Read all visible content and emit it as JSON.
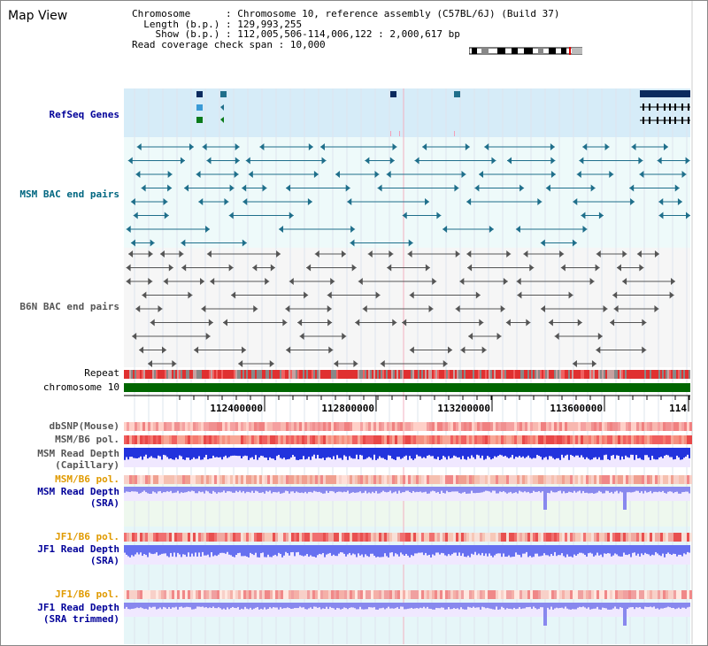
{
  "app": {
    "title": "Map View"
  },
  "info": {
    "chromosome_key": "Chromosome",
    "chromosome_value": "Chromosome 10, reference assembly (C57BL/6J) (Build 37)",
    "length_key": "Length (b.p.)",
    "length_value": "129,993,255",
    "show_key": "Show (b.p.)",
    "show_value": "112,005,506-114,006,122 : 2,000,617 bp",
    "coverage_key": "Read coverage check span",
    "coverage_value": "10,000"
  },
  "tracks": {
    "refseq": "RefSeq Genes",
    "msm_bac": "MSM BAC end pairs",
    "b6n_bac": "B6N BAC end pairs",
    "repeat": "Repeat",
    "chromosome": "chromosome 10",
    "dbsnp": "dbSNP(Mouse)",
    "msm_b6_pol_1": "MSM/B6 pol.",
    "msm_depth_cap_1": "MSM Read Depth",
    "msm_depth_cap_2": "(Capillary)",
    "msm_b6_pol_2": "MSM/B6 pol.",
    "msm_depth_sra_1": "MSM Read Depth",
    "msm_depth_sra_2": "(SRA)",
    "jf1_b6_pol_1": "JF1/B6 pol.",
    "jf1_depth_sra_1": "JF1 Read Depth",
    "jf1_depth_sra_2": "(SRA)",
    "jf1_b6_pol_2": "JF1/B6 pol.",
    "jf1_depth_trim_1": "JF1 Read Depth",
    "jf1_depth_trim_2": "(SRA trimmed)"
  },
  "ruler": {
    "ticks": [
      "112400000",
      "112800000",
      "113200000",
      "113600000",
      "114"
    ]
  },
  "colors": {
    "refseq_bg": "#d6ecf8",
    "bac_bg": "#eefafa",
    "msm_bac": "#1f6f8b",
    "b6n_bac": "#555555",
    "chromosome": "#006600",
    "label_navy": "#000099",
    "label_teal": "#006680",
    "label_orange": "#e09a00",
    "depth_blue": "#2233dd",
    "depth_light": "#8888ee"
  }
}
